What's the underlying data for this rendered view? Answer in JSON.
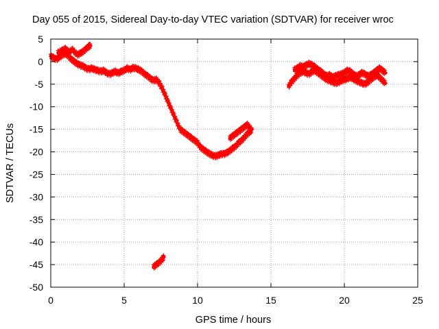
{
  "chart_data": {
    "type": "scatter",
    "title": "Day 055 of 2015, Sidereal Day-to-day VTEC variation (SDTVAR) for receiver wroc",
    "xlabel": "GPS time / hours",
    "ylabel": "SDTVAR / TECUs",
    "xlim": [
      0,
      25
    ],
    "ylim": [
      -50,
      5
    ],
    "xticks": [
      0,
      5,
      10,
      15,
      20,
      25
    ],
    "yticks": [
      5,
      0,
      -5,
      -10,
      -15,
      -20,
      -25,
      -30,
      -35,
      -40,
      -45,
      -50
    ],
    "grid": true,
    "legend": "none",
    "marker": "plus",
    "series": [
      {
        "name": "SDTVAR",
        "color": "#ff0000",
        "segments": [
          {
            "points": [
              [
                0.0,
                1.2
              ],
              [
                0.2,
                0.8
              ],
              [
                0.4,
                0.5
              ],
              [
                0.6,
                1.0
              ],
              [
                0.8,
                1.5
              ],
              [
                1.0,
                1.8
              ],
              [
                1.2,
                1.2
              ],
              [
                1.4,
                0.5
              ],
              [
                1.6,
                0.0
              ],
              [
                1.8,
                -0.5
              ],
              [
                2.0,
                -0.8
              ],
              [
                2.2,
                -1.0
              ],
              [
                2.4,
                -1.5
              ],
              [
                2.6,
                -1.7
              ],
              [
                2.8,
                -1.5
              ],
              [
                3.0,
                -1.8
              ],
              [
                3.2,
                -2.0
              ],
              [
                3.4,
                -2.2
              ],
              [
                3.6,
                -2.0
              ],
              [
                3.8,
                -2.5
              ],
              [
                4.0,
                -2.8
              ],
              [
                4.2,
                -2.5
              ],
              [
                4.4,
                -2.2
              ],
              [
                4.6,
                -2.6
              ],
              [
                4.8,
                -2.2
              ],
              [
                5.0,
                -2.0
              ],
              [
                5.2,
                -1.5
              ],
              [
                5.4,
                -1.8
              ],
              [
                5.6,
                -1.4
              ],
              [
                5.8,
                -1.5
              ],
              [
                6.0,
                -1.8
              ],
              [
                6.2,
                -2.2
              ],
              [
                6.4,
                -2.8
              ],
              [
                6.6,
                -3.2
              ],
              [
                6.8,
                -3.8
              ],
              [
                7.0,
                -4.2
              ],
              [
                7.2,
                -4.0
              ],
              [
                7.4,
                -4.8
              ],
              [
                7.6,
                -6.0
              ],
              [
                7.8,
                -7.5
              ],
              [
                8.0,
                -9.0
              ],
              [
                8.2,
                -10.5
              ],
              [
                8.4,
                -12.0
              ],
              [
                8.6,
                -13.5
              ],
              [
                8.8,
                -15.0
              ],
              [
                9.0,
                -15.5
              ],
              [
                9.2,
                -16.0
              ],
              [
                9.4,
                -16.5
              ],
              [
                9.6,
                -17.0
              ],
              [
                9.8,
                -17.5
              ],
              [
                10.0,
                -18.0
              ],
              [
                10.2,
                -19.0
              ],
              [
                10.4,
                -19.5
              ],
              [
                10.6,
                -20.0
              ],
              [
                10.8,
                -20.4
              ],
              [
                11.0,
                -20.8
              ],
              [
                11.2,
                -21.0
              ],
              [
                11.4,
                -20.8
              ],
              [
                11.6,
                -20.5
              ],
              [
                11.8,
                -20.5
              ],
              [
                12.0,
                -20.2
              ],
              [
                12.2,
                -19.8
              ],
              [
                12.4,
                -19.2
              ],
              [
                12.6,
                -18.8
              ],
              [
                12.8,
                -18.0
              ],
              [
                13.0,
                -17.5
              ],
              [
                13.2,
                -16.8
              ],
              [
                13.4,
                -16.0
              ],
              [
                13.6,
                -15.5
              ],
              [
                13.7,
                -15.0
              ]
            ]
          },
          {
            "points": [
              [
                0.5,
                2.0
              ],
              [
                0.8,
                2.5
              ],
              [
                1.0,
                2.8
              ],
              [
                1.2,
                2.2
              ],
              [
                1.5,
                2.6
              ],
              [
                1.8,
                1.5
              ],
              [
                2.0,
                1.8
              ],
              [
                2.2,
                2.2
              ],
              [
                2.4,
                2.8
              ],
              [
                2.6,
                3.4
              ],
              [
                2.7,
                3.5
              ]
            ]
          },
          {
            "points": [
              [
                12.2,
                -17.0
              ],
              [
                12.4,
                -16.5
              ],
              [
                12.6,
                -16.0
              ],
              [
                12.8,
                -15.5
              ],
              [
                13.0,
                -15.0
              ],
              [
                13.2,
                -14.5
              ],
              [
                13.4,
                -14.0
              ],
              [
                13.6,
                -14.8
              ]
            ]
          },
          {
            "points": [
              [
                7.0,
                -45.5
              ],
              [
                7.2,
                -45.0
              ],
              [
                7.4,
                -44.5
              ],
              [
                7.6,
                -43.8
              ],
              [
                7.7,
                -43.3
              ]
            ]
          },
          {
            "points": [
              [
                16.2,
                -5.5
              ],
              [
                16.4,
                -4.5
              ],
              [
                16.6,
                -3.8
              ],
              [
                16.8,
                -3.0
              ],
              [
                17.0,
                -2.5
              ],
              [
                17.2,
                -2.2
              ],
              [
                17.4,
                -2.5
              ],
              [
                17.6,
                -2.8
              ],
              [
                17.8,
                -2.2
              ],
              [
                18.0,
                -2.0
              ],
              [
                18.2,
                -2.5
              ],
              [
                18.4,
                -3.0
              ],
              [
                18.6,
                -3.5
              ],
              [
                18.8,
                -4.0
              ],
              [
                19.0,
                -4.2
              ],
              [
                19.2,
                -4.5
              ],
              [
                19.4,
                -4.8
              ],
              [
                19.6,
                -4.6
              ],
              [
                19.8,
                -4.2
              ],
              [
                20.0,
                -4.0
              ],
              [
                20.2,
                -3.8
              ],
              [
                20.4,
                -3.5
              ],
              [
                20.6,
                -3.8
              ],
              [
                20.8,
                -4.2
              ],
              [
                21.0,
                -4.5
              ],
              [
                21.2,
                -4.8
              ],
              [
                21.4,
                -5.0
              ],
              [
                21.6,
                -4.6
              ],
              [
                21.8,
                -4.0
              ],
              [
                22.0,
                -3.5
              ],
              [
                22.2,
                -3.0
              ],
              [
                22.4,
                -3.5
              ],
              [
                22.6,
                -4.2
              ],
              [
                22.8,
                -4.8
              ]
            ]
          },
          {
            "points": [
              [
                16.6,
                -1.8
              ],
              [
                16.8,
                -1.5
              ],
              [
                17.0,
                -1.0
              ],
              [
                17.2,
                -1.2
              ],
              [
                17.4,
                -0.8
              ],
              [
                17.6,
                -0.5
              ],
              [
                17.8,
                -0.8
              ],
              [
                18.0,
                -1.2
              ],
              [
                18.2,
                -1.8
              ],
              [
                18.4,
                -2.2
              ],
              [
                18.6,
                -2.8
              ],
              [
                18.8,
                -3.2
              ],
              [
                19.0,
                -3.0
              ],
              [
                19.2,
                -3.5
              ],
              [
                19.4,
                -3.2
              ],
              [
                19.6,
                -3.0
              ],
              [
                19.8,
                -2.8
              ],
              [
                20.0,
                -2.5
              ],
              [
                20.2,
                -2.0
              ],
              [
                20.4,
                -2.2
              ],
              [
                20.6,
                -2.8
              ],
              [
                20.8,
                -3.2
              ],
              [
                21.0,
                -3.0
              ],
              [
                21.2,
                -2.5
              ],
              [
                21.4,
                -2.8
              ],
              [
                21.6,
                -3.2
              ],
              [
                21.8,
                -3.0
              ],
              [
                22.0,
                -2.5
              ],
              [
                22.2,
                -2.0
              ],
              [
                22.4,
                -1.5
              ],
              [
                22.6,
                -2.0
              ],
              [
                22.8,
                -2.5
              ]
            ]
          }
        ]
      }
    ]
  }
}
